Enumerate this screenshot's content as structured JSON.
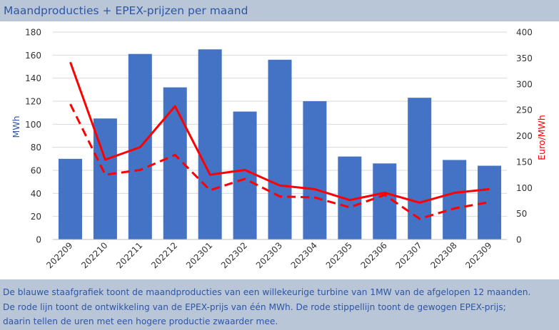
{
  "header": {
    "title": "Maandproducties + EPEX-prijzen per maand"
  },
  "caption": {
    "lines": [
      "De blauwe staafgrafiek toont de maandproducties van een willekeurige turbine van 1MW van de afgelopen 12 maanden.",
      "De rode lijn toont de ontwikkeling van de EPEX-prijs van één MWh. De rode stippellijn toont de gewogen EPEX-prijs;",
      "daarin tellen de uren met een hogere productie zwaarder mee."
    ]
  },
  "colors": {
    "bar": "#4472c4",
    "line": "#ff0000",
    "band": "#b9c6d8",
    "text": "#2f55a4",
    "grid": "#d9d9d9"
  },
  "chart_data": {
    "type": "bar",
    "categories": [
      "202209",
      "202210",
      "202211",
      "202212",
      "202301",
      "202302",
      "202303",
      "202304",
      "202305",
      "202306",
      "202307",
      "202308",
      "202309"
    ],
    "series": [
      {
        "type": "bar",
        "axis": "left",
        "style": "solid",
        "values": [
          70,
          105,
          161,
          132,
          165,
          111,
          156,
          120,
          72,
          66,
          123,
          69,
          64
        ]
      },
      {
        "type": "line",
        "axis": "right",
        "style": "solid",
        "values": [
          342,
          154,
          178,
          257,
          125,
          134,
          104,
          97,
          76,
          90,
          71,
          90,
          97
        ]
      },
      {
        "type": "line",
        "axis": "right",
        "style": "dashed",
        "values": [
          261,
          125,
          134,
          163,
          95,
          117,
          83,
          81,
          62,
          86,
          40,
          60,
          72
        ]
      }
    ],
    "ylabel": "MWh",
    "y2label": "Euro/MWh",
    "ylim": [
      0,
      180
    ],
    "y2lim": [
      0,
      400
    ],
    "yticks": [
      "0",
      "20",
      "40",
      "60",
      "80",
      "100",
      "120",
      "140",
      "160",
      "180"
    ],
    "y2ticks": [
      "0",
      "50",
      "100",
      "150",
      "200",
      "250",
      "300",
      "350",
      "400"
    ],
    "grid": true
  }
}
